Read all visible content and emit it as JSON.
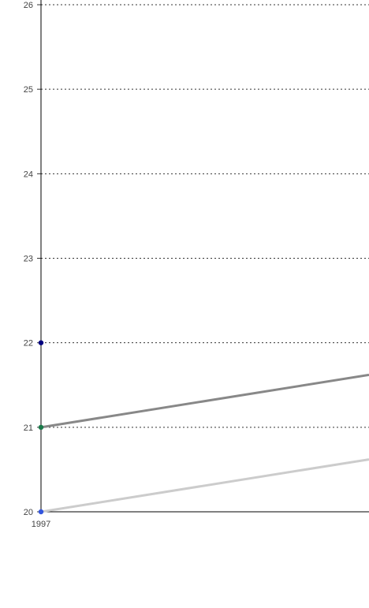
{
  "chart_data": {
    "type": "line",
    "title": "",
    "xlabel": "",
    "ylabel": "",
    "x_tick_labels": [
      "1997"
    ],
    "y_tick_labels": [
      "20",
      "21",
      "22",
      "23",
      "24",
      "25",
      "26"
    ],
    "ylim": [
      20,
      26
    ],
    "x_range": [
      1997,
      2000.5
    ],
    "grid": true,
    "grid_style": "dotted horizontal",
    "legend": "none",
    "series": [
      {
        "color": "#888888",
        "points": [
          [
            1997,
            21.0
          ],
          [
            2000.5,
            21.62
          ]
        ]
      },
      {
        "color": "#cccccc",
        "points": [
          [
            1997,
            20.0
          ],
          [
            2000.5,
            20.62
          ]
        ]
      }
    ],
    "markers": [
      {
        "x": 1997,
        "y": 22,
        "color": "#000080"
      },
      {
        "x": 1997,
        "y": 21,
        "color": "#1a7a4a"
      },
      {
        "x": 1997,
        "y": 20,
        "color": "#3355dd"
      }
    ]
  }
}
